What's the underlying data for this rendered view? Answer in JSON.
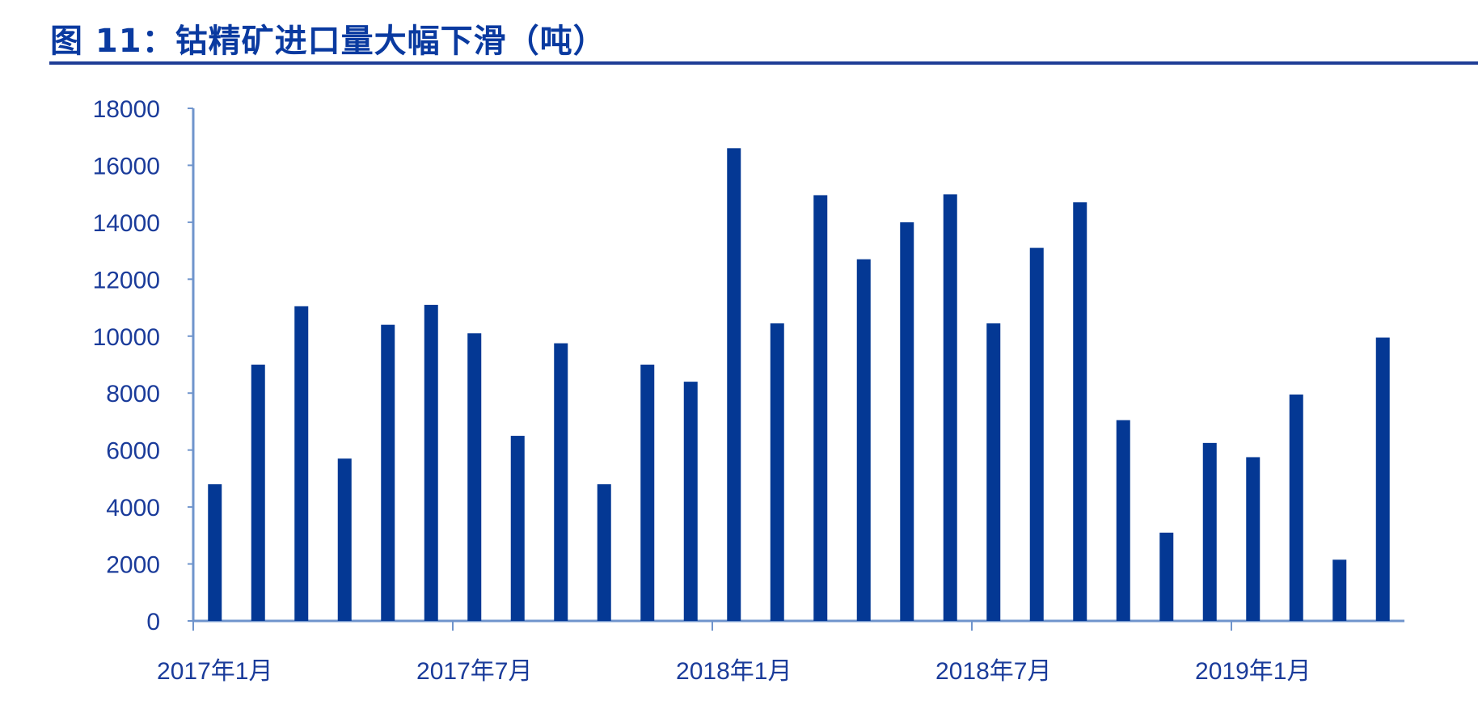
{
  "title": "图 11：钴精矿进口量大幅下滑（吨）",
  "chart_data": {
    "type": "bar",
    "title": "图 11：钴精矿进口量大幅下滑（吨）",
    "xlabel": "",
    "ylabel": "",
    "ylim": [
      0,
      18000
    ],
    "yticks": [
      "0",
      "2000",
      "4000",
      "6000",
      "8000",
      "10000",
      "12000",
      "14000",
      "16000",
      "18000"
    ],
    "xtick_labels": [
      {
        "index": 0,
        "label": "2017年1月"
      },
      {
        "index": 6,
        "label": "2017年7月"
      },
      {
        "index": 12,
        "label": "2018年1月"
      },
      {
        "index": 18,
        "label": "2018年7月"
      },
      {
        "index": 24,
        "label": "2019年1月"
      }
    ],
    "categories": [
      "2017-01",
      "2017-02",
      "2017-03",
      "2017-04",
      "2017-05",
      "2017-06",
      "2017-07",
      "2017-08",
      "2017-09",
      "2017-10",
      "2017-11",
      "2017-12",
      "2018-01",
      "2018-02",
      "2018-03",
      "2018-04",
      "2018-05",
      "2018-06",
      "2018-07",
      "2018-08",
      "2018-09",
      "2018-10",
      "2018-11",
      "2018-12",
      "2019-01",
      "2019-02",
      "2019-03",
      "2019-04"
    ],
    "values": [
      4800,
      9000,
      11050,
      5700,
      10400,
      11100,
      10100,
      6500,
      9750,
      4800,
      9000,
      8400,
      16600,
      10450,
      14950,
      12700,
      14000,
      14980,
      10450,
      13100,
      14700,
      7050,
      3100,
      6250,
      5750,
      7950,
      2150,
      9950
    ],
    "bar_color": "#043894",
    "axis_color": "#6f94cc",
    "grid": false
  }
}
